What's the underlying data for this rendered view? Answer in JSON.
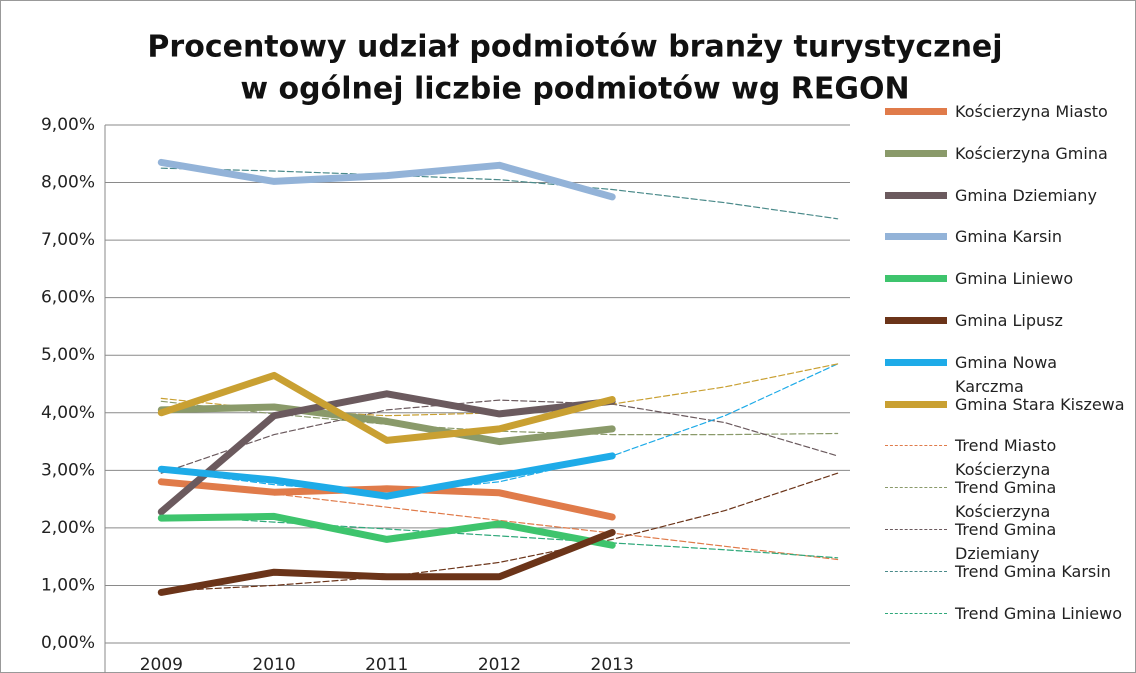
{
  "chart_data": {
    "type": "line",
    "title": "Procentowy udział podmiotów branży turystycznej",
    "subtitle": "w ogólnej liczbie podmiotów wg REGON",
    "categories": [
      "2009",
      "2010",
      "2011",
      "2012",
      "2013",
      null,
      null
    ],
    "ylim": [
      0,
      9
    ],
    "yticks": [
      {
        "value": 0,
        "label": "0,00%"
      },
      {
        "value": 1,
        "label": "1,00%"
      },
      {
        "value": 2,
        "label": "2,00%"
      },
      {
        "value": 3,
        "label": "3,00%"
      },
      {
        "value": 4,
        "label": "4,00%"
      },
      {
        "value": 5,
        "label": "5,00%"
      },
      {
        "value": 6,
        "label": "6,00%"
      },
      {
        "value": 7,
        "label": "7,00%"
      },
      {
        "value": 8,
        "label": "8,00%"
      },
      {
        "value": 9,
        "label": "9,00%"
      }
    ],
    "grid": true,
    "legend": "right",
    "series": [
      {
        "name": "Kościerzyna Miasto",
        "color": "#e07b4a",
        "values": [
          2.8,
          2.62,
          2.68,
          2.61,
          2.19,
          null,
          null
        ]
      },
      {
        "name": "Kościerzyna Gmina",
        "color": "#8a9a6a",
        "values": [
          4.05,
          4.1,
          3.85,
          3.5,
          3.72,
          null,
          null
        ]
      },
      {
        "name": "Gmina Dziemiany",
        "color": "#6b5a5e",
        "values": [
          2.28,
          3.95,
          4.33,
          3.98,
          4.2,
          null,
          null
        ]
      },
      {
        "name": "Gmina Karsin",
        "color": "#93b3d8",
        "values": [
          8.35,
          8.02,
          8.12,
          8.3,
          7.75,
          null,
          null
        ]
      },
      {
        "name": "Gmina Liniewo",
        "color": "#3ec46d",
        "values": [
          2.17,
          2.2,
          1.8,
          2.07,
          1.7,
          null,
          null
        ]
      },
      {
        "name": "Gmina Lipusz",
        "color": "#6b3419",
        "values": [
          0.88,
          1.23,
          1.15,
          1.15,
          1.92,
          null,
          null
        ]
      },
      {
        "name": "Gmina Nowa Karczma",
        "color": "#1eabe8",
        "values": [
          3.02,
          2.83,
          2.55,
          2.9,
          3.25,
          null,
          null
        ]
      },
      {
        "name": "Gmina Stara Kiszewa",
        "color": "#c9a032",
        "values": [
          4.0,
          4.65,
          3.52,
          3.72,
          4.23,
          null,
          null
        ]
      },
      {
        "name": "Trend Miasto Kościerzyna",
        "color": "#e07b4a",
        "dashed": true,
        "values": [
          2.82,
          2.59,
          2.36,
          2.13,
          1.91,
          1.68,
          1.45
        ]
      },
      {
        "name": "Trend Gmina Kościerzyna",
        "color": "#8a9a6a",
        "dashed": true,
        "values": [
          4.2,
          3.98,
          3.8,
          3.68,
          3.62,
          3.62,
          3.64
        ]
      },
      {
        "name": "Trend Gmina Dziemiany",
        "color": "#6b5a5e",
        "dashed": true,
        "values": [
          2.95,
          3.62,
          4.05,
          4.22,
          4.15,
          3.83,
          3.25
        ]
      },
      {
        "name": "Trend Gmina Karsin",
        "color": "#4a8a8a",
        "dashed": true,
        "values": [
          8.25,
          8.2,
          8.13,
          8.05,
          7.88,
          7.65,
          7.37
        ]
      },
      {
        "name": "Trend Gmina Liniewo",
        "color": "#2fa87a",
        "dashed": true,
        "values": [
          2.22,
          2.1,
          1.98,
          1.86,
          1.74,
          1.62,
          1.48
        ]
      },
      {
        "color": "#6b3419",
        "dashed": true,
        "values": [
          0.9,
          1.0,
          1.15,
          1.4,
          1.8,
          2.3,
          2.95
        ]
      },
      {
        "color": "#1eabe8",
        "dashed": true,
        "values": [
          3.0,
          2.75,
          2.6,
          2.8,
          3.25,
          3.95,
          4.85
        ]
      },
      {
        "color": "#c9a032",
        "dashed": true,
        "values": [
          4.25,
          4.05,
          3.95,
          4.0,
          4.15,
          4.45,
          4.85
        ]
      }
    ]
  }
}
